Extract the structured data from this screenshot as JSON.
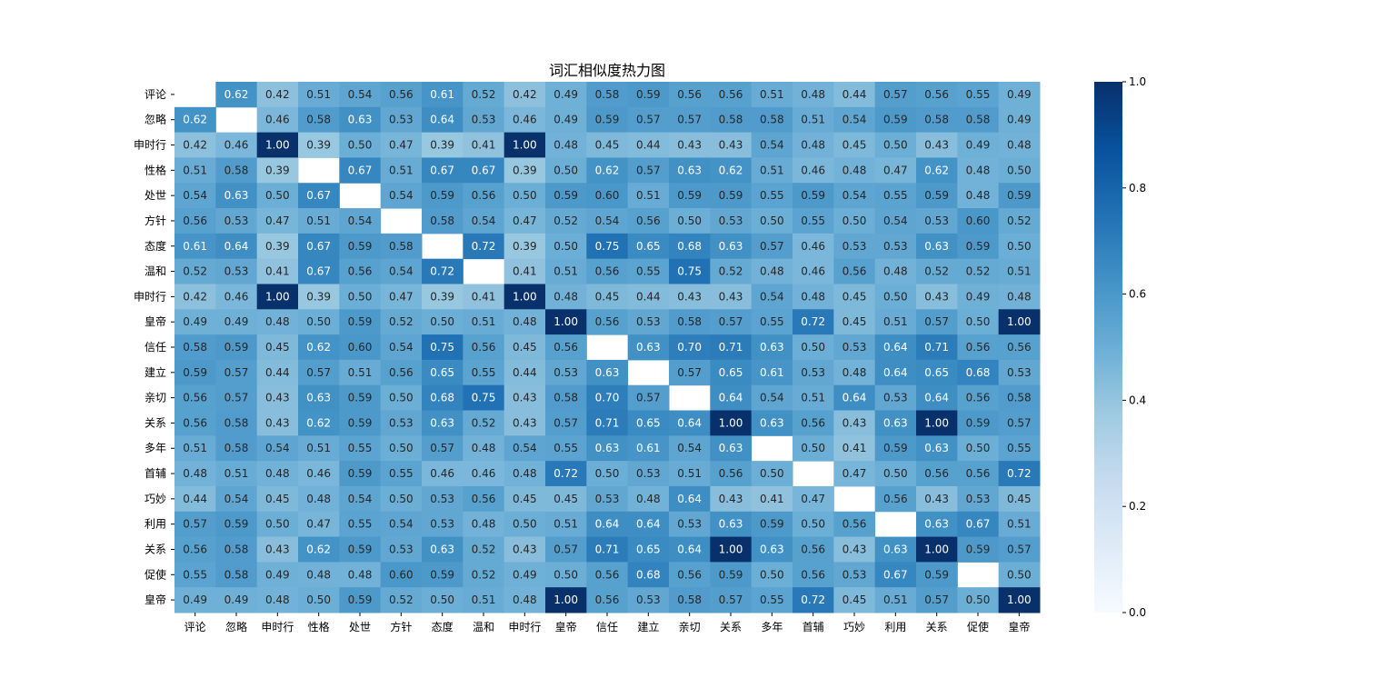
{
  "chart_data": {
    "type": "heatmap",
    "title": "词汇相似度热力图",
    "colormap": "Blues",
    "vmin": 0.0,
    "vmax": 1.0,
    "colorbar_ticks": [
      "0.0",
      "0.2",
      "0.4",
      "0.6",
      "0.8",
      "1.0"
    ],
    "colorbar_tick_values": [
      0.0,
      0.2,
      0.4,
      0.6,
      0.8,
      1.0
    ],
    "row_labels": [
      "评论",
      "忽略",
      "申时行",
      "性格",
      "处世",
      "方针",
      "态度",
      "温和",
      "申时行",
      "皇帝",
      "信任",
      "建立",
      "亲切",
      "关系",
      "多年",
      "首辅",
      "巧妙",
      "利用",
      "关系",
      "促使",
      "皇帝"
    ],
    "col_labels": [
      "评论",
      "忽略",
      "申时行",
      "性格",
      "处世",
      "方针",
      "态度",
      "温和",
      "申时行",
      "皇帝",
      "信任",
      "建立",
      "亲切",
      "关系",
      "多年",
      "首辅",
      "巧妙",
      "利用",
      "关系",
      "促使",
      "皇帝"
    ],
    "values": [
      [
        null,
        0.62,
        0.42,
        0.51,
        0.54,
        0.56,
        0.61,
        0.52,
        0.42,
        0.49,
        0.58,
        0.59,
        0.56,
        0.56,
        0.51,
        0.48,
        0.44,
        0.57,
        0.56,
        0.55,
        0.49
      ],
      [
        0.62,
        null,
        0.46,
        0.58,
        0.63,
        0.53,
        0.64,
        0.53,
        0.46,
        0.49,
        0.59,
        0.57,
        0.57,
        0.58,
        0.58,
        0.51,
        0.54,
        0.59,
        0.58,
        0.58,
        0.49
      ],
      [
        0.42,
        0.46,
        1.0,
        0.39,
        0.5,
        0.47,
        0.39,
        0.41,
        1.0,
        0.48,
        0.45,
        0.44,
        0.43,
        0.43,
        0.54,
        0.48,
        0.45,
        0.5,
        0.43,
        0.49,
        0.48
      ],
      [
        0.51,
        0.58,
        0.39,
        null,
        0.67,
        0.51,
        0.67,
        0.67,
        0.39,
        0.5,
        0.62,
        0.57,
        0.63,
        0.62,
        0.51,
        0.46,
        0.48,
        0.47,
        0.62,
        0.48,
        0.5
      ],
      [
        0.54,
        0.63,
        0.5,
        0.67,
        null,
        0.54,
        0.59,
        0.56,
        0.5,
        0.59,
        0.6,
        0.51,
        0.59,
        0.59,
        0.55,
        0.59,
        0.54,
        0.55,
        0.59,
        0.48,
        0.59
      ],
      [
        0.56,
        0.53,
        0.47,
        0.51,
        0.54,
        null,
        0.58,
        0.54,
        0.47,
        0.52,
        0.54,
        0.56,
        0.5,
        0.53,
        0.5,
        0.55,
        0.5,
        0.54,
        0.53,
        0.6,
        0.52
      ],
      [
        0.61,
        0.64,
        0.39,
        0.67,
        0.59,
        0.58,
        null,
        0.72,
        0.39,
        0.5,
        0.75,
        0.65,
        0.68,
        0.63,
        0.57,
        0.46,
        0.53,
        0.53,
        0.63,
        0.59,
        0.5
      ],
      [
        0.52,
        0.53,
        0.41,
        0.67,
        0.56,
        0.54,
        0.72,
        null,
        0.41,
        0.51,
        0.56,
        0.55,
        0.75,
        0.52,
        0.48,
        0.46,
        0.56,
        0.48,
        0.52,
        0.52,
        0.51
      ],
      [
        0.42,
        0.46,
        1.0,
        0.39,
        0.5,
        0.47,
        0.39,
        0.41,
        1.0,
        0.48,
        0.45,
        0.44,
        0.43,
        0.43,
        0.54,
        0.48,
        0.45,
        0.5,
        0.43,
        0.49,
        0.48
      ],
      [
        0.49,
        0.49,
        0.48,
        0.5,
        0.59,
        0.52,
        0.5,
        0.51,
        0.48,
        1.0,
        0.56,
        0.53,
        0.58,
        0.57,
        0.55,
        0.72,
        0.45,
        0.51,
        0.57,
        0.5,
        1.0
      ],
      [
        0.58,
        0.59,
        0.45,
        0.62,
        0.6,
        0.54,
        0.75,
        0.56,
        0.45,
        0.56,
        null,
        0.63,
        0.7,
        0.71,
        0.63,
        0.5,
        0.53,
        0.64,
        0.71,
        0.56,
        0.56
      ],
      [
        0.59,
        0.57,
        0.44,
        0.57,
        0.51,
        0.56,
        0.65,
        0.55,
        0.44,
        0.53,
        0.63,
        null,
        0.57,
        0.65,
        0.61,
        0.53,
        0.48,
        0.64,
        0.65,
        0.68,
        0.53
      ],
      [
        0.56,
        0.57,
        0.43,
        0.63,
        0.59,
        0.5,
        0.68,
        0.75,
        0.43,
        0.58,
        0.7,
        0.57,
        null,
        0.64,
        0.54,
        0.51,
        0.64,
        0.53,
        0.64,
        0.56,
        0.58
      ],
      [
        0.56,
        0.58,
        0.43,
        0.62,
        0.59,
        0.53,
        0.63,
        0.52,
        0.43,
        0.57,
        0.71,
        0.65,
        0.64,
        1.0,
        0.63,
        0.56,
        0.43,
        0.63,
        1.0,
        0.59,
        0.57
      ],
      [
        0.51,
        0.58,
        0.54,
        0.51,
        0.55,
        0.5,
        0.57,
        0.48,
        0.54,
        0.55,
        0.63,
        0.61,
        0.54,
        0.63,
        null,
        0.5,
        0.41,
        0.59,
        0.63,
        0.5,
        0.55
      ],
      [
        0.48,
        0.51,
        0.48,
        0.46,
        0.59,
        0.55,
        0.46,
        0.46,
        0.48,
        0.72,
        0.5,
        0.53,
        0.51,
        0.56,
        0.5,
        null,
        0.47,
        0.5,
        0.56,
        0.56,
        0.72
      ],
      [
        0.44,
        0.54,
        0.45,
        0.48,
        0.54,
        0.5,
        0.53,
        0.56,
        0.45,
        0.45,
        0.53,
        0.48,
        0.64,
        0.43,
        0.41,
        0.47,
        null,
        0.56,
        0.43,
        0.53,
        0.45
      ],
      [
        0.57,
        0.59,
        0.5,
        0.47,
        0.55,
        0.54,
        0.53,
        0.48,
        0.5,
        0.51,
        0.64,
        0.64,
        0.53,
        0.63,
        0.59,
        0.5,
        0.56,
        null,
        0.63,
        0.67,
        0.51
      ],
      [
        0.56,
        0.58,
        0.43,
        0.62,
        0.59,
        0.53,
        0.63,
        0.52,
        0.43,
        0.57,
        0.71,
        0.65,
        0.64,
        1.0,
        0.63,
        0.56,
        0.43,
        0.63,
        1.0,
        0.59,
        0.57
      ],
      [
        0.55,
        0.58,
        0.49,
        0.48,
        0.48,
        0.6,
        0.59,
        0.52,
        0.49,
        0.5,
        0.56,
        0.68,
        0.56,
        0.59,
        0.5,
        0.56,
        0.53,
        0.67,
        0.59,
        null,
        0.5
      ],
      [
        0.49,
        0.49,
        0.48,
        0.5,
        0.59,
        0.52,
        0.5,
        0.51,
        0.48,
        1.0,
        0.56,
        0.53,
        0.58,
        0.57,
        0.55,
        0.72,
        0.45,
        0.51,
        0.57,
        0.5,
        1.0
      ]
    ],
    "value_format": "0.00"
  }
}
